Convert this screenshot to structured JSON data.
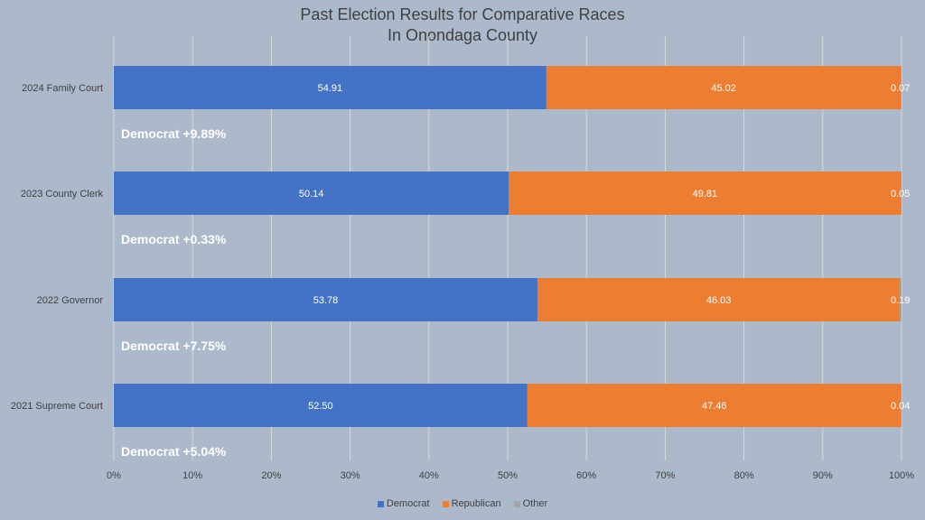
{
  "chart_data": {
    "type": "bar",
    "orientation": "horizontal",
    "stacked": "percent",
    "title": "Past Election Results for Comparative Races",
    "subtitle": "In Onondaga County",
    "categories": [
      "2024 Family Court",
      "2023 County Clerk",
      "2022 Governor",
      "2021 Supreme Court"
    ],
    "series": [
      {
        "name": "Democrat",
        "color": "#4472c4",
        "values": [
          54.91,
          50.14,
          53.78,
          52.5
        ],
        "labels": [
          "54.91",
          "50.14",
          "53.78",
          "52.50"
        ]
      },
      {
        "name": "Republican",
        "color": "#ed7d31",
        "values": [
          45.02,
          49.81,
          46.03,
          47.46
        ],
        "labels": [
          "45.02",
          "49.81",
          "46.03",
          "47.46"
        ]
      },
      {
        "name": "Other",
        "color": "#a5a5a5",
        "values": [
          0.07,
          0.05,
          0.19,
          0.04
        ],
        "labels": [
          "0.07",
          "0.05",
          "0.19",
          "0.04"
        ]
      }
    ],
    "annotations": [
      "Democrat +9.89%",
      "Democrat +0.33%",
      "Democrat +7.75%",
      "Democrat +5.04%"
    ],
    "xlim": [
      0,
      100
    ],
    "xticks": [
      "0%",
      "10%",
      "20%",
      "30%",
      "40%",
      "50%",
      "60%",
      "70%",
      "80%",
      "90%",
      "100%"
    ],
    "grid": "vertical",
    "legend_position": "bottom"
  }
}
